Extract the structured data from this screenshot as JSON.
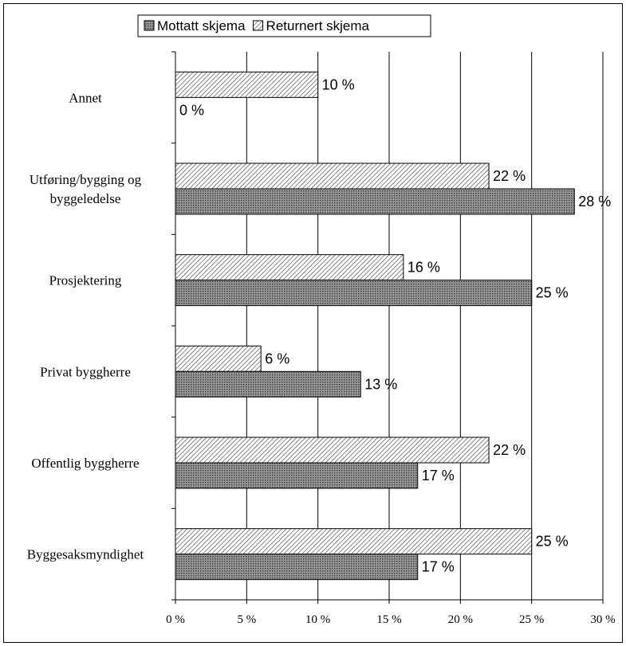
{
  "chart_data": {
    "type": "bar",
    "orientation": "horizontal",
    "title": "",
    "xlabel": "",
    "ylabel": "",
    "categories": [
      "Annet",
      "Utføring/bygging og byggeledelse",
      "Prosjektering",
      "Privat byggherre",
      "Offentlig byggherre",
      "Byggesaksmyndighet"
    ],
    "category_lines": [
      [
        "Annet"
      ],
      [
        "Utføring/bygging og",
        "byggeledelse"
      ],
      [
        "Prosjektering"
      ],
      [
        "Privat byggherre"
      ],
      [
        "Offentlig byggherre"
      ],
      [
        "Byggesaksmyndighet"
      ]
    ],
    "series": [
      {
        "name": "Returnert skjema",
        "values": [
          10,
          22,
          16,
          6,
          22,
          25
        ],
        "labels": [
          "10 %",
          "22 %",
          "16 %",
          "6 %",
          "22 %",
          "25 %"
        ],
        "pattern": "diagonal-hatch",
        "color": "#ffffff"
      },
      {
        "name": "Mottatt skjema",
        "values": [
          0,
          28,
          25,
          13,
          17,
          17
        ],
        "labels": [
          "0 %",
          "28 %",
          "25 %",
          "13 %",
          "17 %",
          "17 %"
        ],
        "pattern": "dense-dots",
        "color": "#7a7a7a"
      }
    ],
    "legend_order": [
      "Mottatt skjema",
      "Returnert skjema"
    ],
    "xlim": [
      0,
      30
    ],
    "xticks": [
      0,
      5,
      10,
      15,
      20,
      25,
      30
    ],
    "xtick_labels": [
      "0 %",
      "5 %",
      "10 %",
      "15 %",
      "20 %",
      "25 %",
      "30 %"
    ],
    "grid": "vertical",
    "legend_position": "top"
  }
}
